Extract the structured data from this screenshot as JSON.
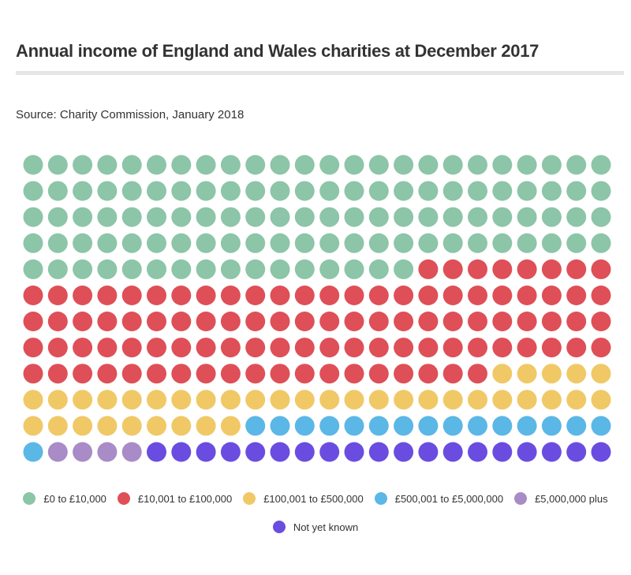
{
  "header": {
    "title": "Annual income of England and Wales charities at December 2017",
    "source": "Source: Charity Commission, January 2018"
  },
  "chart_data": {
    "type": "waffle",
    "title": "Annual income of England and Wales charities at December 2017",
    "subtitle": "Source: Charity Commission, January 2018",
    "grid": {
      "columns": 24,
      "rows": 12,
      "fill_order": "row-major, left-to-right, top-to-bottom"
    },
    "total_units": 288,
    "legend_position": "bottom-center",
    "series": [
      {
        "name": "£0 to £10,000",
        "units": 112,
        "color": "#8cc5a8"
      },
      {
        "name": "£10,001 to £100,000",
        "units": 99,
        "color": "#df4f57"
      },
      {
        "name": "£100,001 to £500,000",
        "units": 38,
        "color": "#f0c966"
      },
      {
        "name": "£500,001 to £5,000,000",
        "units": 16,
        "color": "#5bb7e6"
      },
      {
        "name": "£5,000,000 plus",
        "units": 4,
        "color": "#a98bc7"
      },
      {
        "name": "Not yet known",
        "units": 19,
        "color": "#6a4de0"
      }
    ]
  },
  "legend": {
    "items": [
      {
        "label": "£0 to £10,000",
        "color": "#8cc5a8"
      },
      {
        "label": "£10,001 to £100,000",
        "color": "#df4f57"
      },
      {
        "label": "£100,001 to £500,000",
        "color": "#f0c966"
      },
      {
        "label": "£500,001 to £5,000,000",
        "color": "#5bb7e6"
      },
      {
        "label": "£5,000,000 plus",
        "color": "#a98bc7"
      },
      {
        "label": "Not yet known",
        "color": "#6a4de0"
      }
    ]
  }
}
